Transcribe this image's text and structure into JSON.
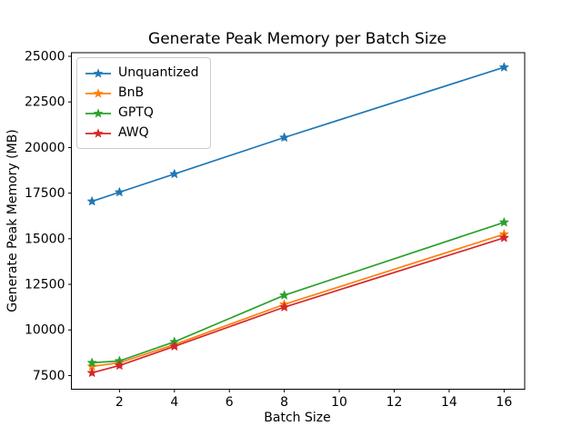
{
  "chart_data": {
    "type": "line",
    "title": "Generate Peak Memory per Batch Size",
    "xlabel": "Batch Size",
    "ylabel": "Generate Peak Memory (MB)",
    "x": [
      1,
      2,
      4,
      8,
      16
    ],
    "series": [
      {
        "name": "Unquantized",
        "color": "#1f77b4",
        "values": [
          17050,
          17550,
          18550,
          20550,
          24400
        ]
      },
      {
        "name": "BnB",
        "color": "#ff7f0e",
        "values": [
          8000,
          8200,
          9200,
          11400,
          15250
        ]
      },
      {
        "name": "GPTQ",
        "color": "#2ca02c",
        "values": [
          8200,
          8300,
          9350,
          11900,
          15900
        ]
      },
      {
        "name": "AWQ",
        "color": "#d62728",
        "values": [
          7650,
          8050,
          9100,
          11250,
          15050
        ]
      }
    ],
    "xlim": [
      0.25,
      16.75
    ],
    "ylim": [
      6750,
      25200
    ],
    "xticks": [
      2,
      4,
      6,
      8,
      10,
      12,
      14,
      16
    ],
    "yticks": [
      7500,
      10000,
      12500,
      15000,
      17500,
      20000,
      22500,
      25000
    ],
    "marker": "star",
    "grid": false,
    "legend_position": "upper-left",
    "background": "#ffffff",
    "axis_color": "#000000"
  }
}
